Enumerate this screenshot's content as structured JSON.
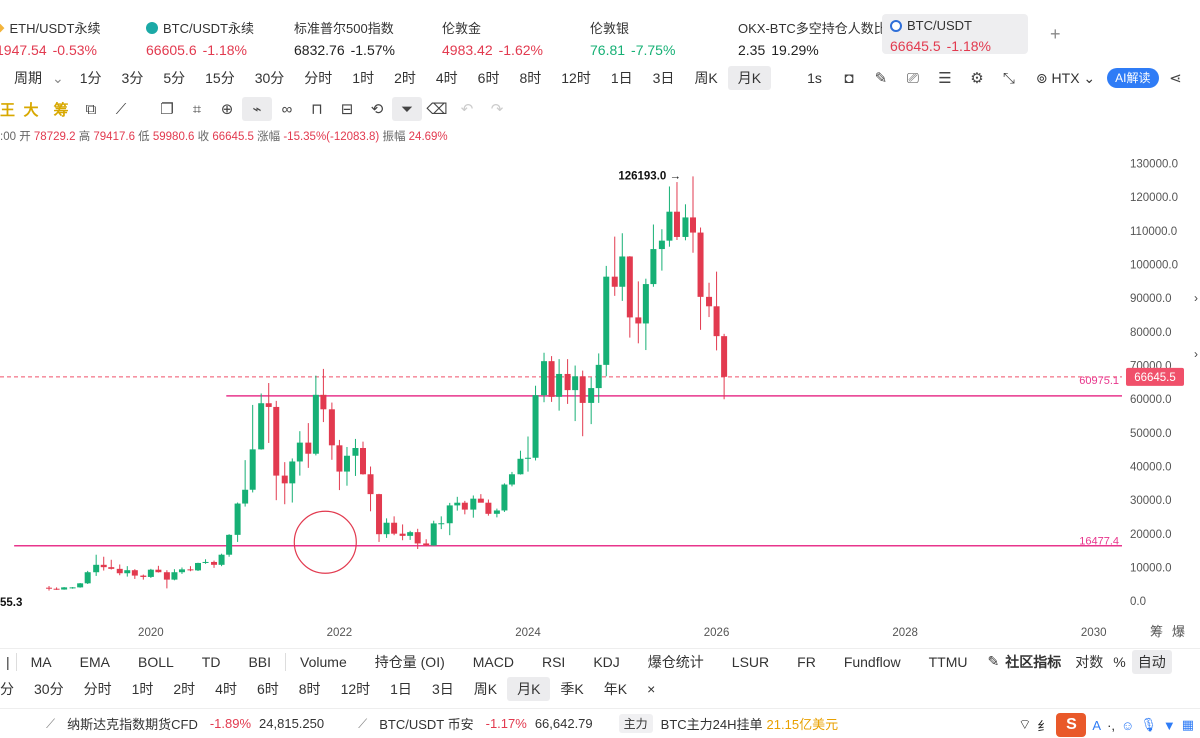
{
  "tickers": [
    {
      "name": "ETH/USDT永续",
      "price": "1947.54",
      "change": "-0.53%",
      "dir": "red",
      "icon": "eth-icon"
    },
    {
      "name": "BTC/USDT永续",
      "price": "66605.6",
      "change": "-1.18%",
      "dir": "red",
      "icon": "btc-perp-icon"
    },
    {
      "name": "标准普尔500指数",
      "price": "6832.76",
      "change": "-1.57%",
      "dir": "dark",
      "icon": ""
    },
    {
      "name": "伦敦金",
      "price": "4983.42",
      "change": "-1.62%",
      "dir": "red",
      "icon": ""
    },
    {
      "name": "伦敦银",
      "price": "76.81",
      "change": "-7.75%",
      "dir": "green",
      "icon": ""
    },
    {
      "name": "OKX-BTC多空持仓人数比",
      "price": "2.35",
      "change": "19.29%",
      "dir": "dark",
      "icon": ""
    },
    {
      "name": "BTC/USDT",
      "price": "66645.5",
      "change": "-1.18%",
      "dir": "red",
      "icon": "btc-icon",
      "active": true
    }
  ],
  "timeframes": [
    "周期",
    "1分",
    "3分",
    "5分",
    "15分",
    "30分",
    "分时",
    "1时",
    "2时",
    "4时",
    "6时",
    "8时",
    "12时",
    "1日",
    "3日",
    "周K",
    "月K"
  ],
  "timeframe_selected": "月K",
  "right_tools": {
    "interval": "1s",
    "exchange": "HTX",
    "ai": "AI解读"
  },
  "draw_tools_text": [
    "王",
    "大",
    "筹"
  ],
  "ohlc": {
    "time": ":00",
    "open_label": "开",
    "open": "78729.2",
    "high_label": "高",
    "high": "79417.6",
    "low_label": "低",
    "low": "59980.6",
    "close_label": "收",
    "close": "66645.5",
    "chg_label": "涨幅",
    "chg": "-15.35%(-12083.8)",
    "amp_label": "振幅",
    "amp": "24.69%"
  },
  "chart_data": {
    "type": "candlestick",
    "ylim": [
      -5000,
      137000
    ],
    "yticks": [
      0,
      10000,
      20000,
      30000,
      40000,
      50000,
      60000,
      70000,
      80000,
      90000,
      100000,
      110000,
      120000,
      130000
    ],
    "ytick_labels": [
      "0.0",
      "10000.0",
      "20000.0",
      "30000.0",
      "40000.0",
      "50000.0",
      "60000.0",
      "70000.0",
      "80000.0",
      "90000.0",
      "100000.0",
      "110000.0",
      "120000.0",
      "130000.0"
    ],
    "xticks": [
      "2020",
      "2022",
      "2024",
      "2026",
      "2028",
      "2030"
    ],
    "xtick_values": [
      2020.0,
      2022.0,
      2024.0,
      2026.0,
      2028.0,
      2030.0
    ],
    "xlim": [
      2018.4,
      2030.3
    ],
    "last_price": 66645.5,
    "last_price_label": "66645.5",
    "hlines": [
      {
        "value": 60975.1,
        "label": "60975.1"
      },
      {
        "value": 16477.4,
        "label": "16477.4"
      }
    ],
    "annotations": [
      {
        "text": "126193.0",
        "x": 2025.75,
        "y": 126193
      },
      {
        "text": "55.3",
        "x": 2019.0,
        "y": 3855.3
      }
    ],
    "circle": {
      "x": 2021.85,
      "y": 17500
    },
    "candles": [
      {
        "t": 2018.92,
        "o": 4000,
        "h": 4500,
        "l": 3150,
        "c": 3700
      },
      {
        "t": 2019.0,
        "o": 3700,
        "h": 4100,
        "l": 3350,
        "c": 3450
      },
      {
        "t": 2019.08,
        "o": 3450,
        "h": 4200,
        "l": 3400,
        "c": 4100
      },
      {
        "t": 2019.17,
        "o": 4100,
        "h": 4200,
        "l": 3700,
        "c": 4100
      },
      {
        "t": 2019.25,
        "o": 4100,
        "h": 5400,
        "l": 4000,
        "c": 5300
      },
      {
        "t": 2019.33,
        "o": 5300,
        "h": 9000,
        "l": 5100,
        "c": 8600
      },
      {
        "t": 2019.42,
        "o": 8600,
        "h": 13800,
        "l": 7500,
        "c": 10800
      },
      {
        "t": 2019.5,
        "o": 10800,
        "h": 13200,
        "l": 9100,
        "c": 10100
      },
      {
        "t": 2019.58,
        "o": 10100,
        "h": 12300,
        "l": 9400,
        "c": 9600
      },
      {
        "t": 2019.67,
        "o": 9600,
        "h": 10900,
        "l": 7700,
        "c": 8300
      },
      {
        "t": 2019.75,
        "o": 8300,
        "h": 10400,
        "l": 7300,
        "c": 9200
      },
      {
        "t": 2019.83,
        "o": 9200,
        "h": 9500,
        "l": 6600,
        "c": 7600
      },
      {
        "t": 2019.92,
        "o": 7600,
        "h": 7900,
        "l": 6400,
        "c": 7200
      },
      {
        "t": 2020.0,
        "o": 7200,
        "h": 9600,
        "l": 6900,
        "c": 9350
      },
      {
        "t": 2020.08,
        "o": 9350,
        "h": 10500,
        "l": 8500,
        "c": 8600
      },
      {
        "t": 2020.17,
        "o": 8600,
        "h": 9200,
        "l": 3800,
        "c": 6400
      },
      {
        "t": 2020.25,
        "o": 6400,
        "h": 9500,
        "l": 6200,
        "c": 8600
      },
      {
        "t": 2020.33,
        "o": 8600,
        "h": 10000,
        "l": 8100,
        "c": 9450
      },
      {
        "t": 2020.42,
        "o": 9450,
        "h": 10400,
        "l": 8900,
        "c": 9150
      },
      {
        "t": 2020.5,
        "o": 9150,
        "h": 11400,
        "l": 8950,
        "c": 11350
      },
      {
        "t": 2020.58,
        "o": 11350,
        "h": 12450,
        "l": 11100,
        "c": 11650
      },
      {
        "t": 2020.67,
        "o": 11650,
        "h": 12050,
        "l": 9900,
        "c": 10800
      },
      {
        "t": 2020.75,
        "o": 10800,
        "h": 14100,
        "l": 10400,
        "c": 13800
      },
      {
        "t": 2020.83,
        "o": 13800,
        "h": 19900,
        "l": 13200,
        "c": 19700
      },
      {
        "t": 2020.92,
        "o": 19700,
        "h": 29300,
        "l": 17600,
        "c": 29000
      },
      {
        "t": 2021.0,
        "o": 29000,
        "h": 41900,
        "l": 28100,
        "c": 33100
      },
      {
        "t": 2021.08,
        "o": 33100,
        "h": 58300,
        "l": 32300,
        "c": 45100
      },
      {
        "t": 2021.17,
        "o": 45100,
        "h": 61700,
        "l": 45000,
        "c": 58800
      },
      {
        "t": 2021.25,
        "o": 58800,
        "h": 64800,
        "l": 47000,
        "c": 57700
      },
      {
        "t": 2021.33,
        "o": 57700,
        "h": 59500,
        "l": 30000,
        "c": 37300
      },
      {
        "t": 2021.42,
        "o": 37300,
        "h": 41300,
        "l": 28800,
        "c": 35000
      },
      {
        "t": 2021.5,
        "o": 35000,
        "h": 42400,
        "l": 29300,
        "c": 41500
      },
      {
        "t": 2021.58,
        "o": 41500,
        "h": 50500,
        "l": 37300,
        "c": 47100
      },
      {
        "t": 2021.67,
        "o": 47100,
        "h": 52900,
        "l": 39600,
        "c": 43800
      },
      {
        "t": 2021.75,
        "o": 43800,
        "h": 67000,
        "l": 43300,
        "c": 61300
      },
      {
        "t": 2021.83,
        "o": 61300,
        "h": 69000,
        "l": 53200,
        "c": 57000
      },
      {
        "t": 2021.92,
        "o": 57000,
        "h": 59000,
        "l": 42000,
        "c": 46300
      },
      {
        "t": 2022.0,
        "o": 46300,
        "h": 47900,
        "l": 33000,
        "c": 38500
      },
      {
        "t": 2022.08,
        "o": 38500,
        "h": 45800,
        "l": 34300,
        "c": 43200
      },
      {
        "t": 2022.17,
        "o": 43200,
        "h": 48200,
        "l": 37200,
        "c": 45500
      },
      {
        "t": 2022.25,
        "o": 45500,
        "h": 47400,
        "l": 37600,
        "c": 37700
      },
      {
        "t": 2022.33,
        "o": 37700,
        "h": 40000,
        "l": 26700,
        "c": 31800
      },
      {
        "t": 2022.42,
        "o": 31800,
        "h": 31900,
        "l": 17600,
        "c": 19900
      },
      {
        "t": 2022.5,
        "o": 19900,
        "h": 24600,
        "l": 18800,
        "c": 23300
      },
      {
        "t": 2022.58,
        "o": 23300,
        "h": 25200,
        "l": 19600,
        "c": 20050
      },
      {
        "t": 2022.67,
        "o": 20050,
        "h": 22800,
        "l": 18100,
        "c": 19400
      },
      {
        "t": 2022.75,
        "o": 19400,
        "h": 20900,
        "l": 18200,
        "c": 20500
      },
      {
        "t": 2022.83,
        "o": 20500,
        "h": 21500,
        "l": 15500,
        "c": 17150
      },
      {
        "t": 2022.92,
        "o": 17150,
        "h": 18400,
        "l": 16300,
        "c": 16550
      },
      {
        "t": 2023.0,
        "o": 16550,
        "h": 23900,
        "l": 16500,
        "c": 23100
      },
      {
        "t": 2023.08,
        "o": 23100,
        "h": 25200,
        "l": 21400,
        "c": 23150
      },
      {
        "t": 2023.17,
        "o": 23150,
        "h": 29200,
        "l": 19600,
        "c": 28450
      },
      {
        "t": 2023.25,
        "o": 28450,
        "h": 31000,
        "l": 26900,
        "c": 29250
      },
      {
        "t": 2023.33,
        "o": 29250,
        "h": 29800,
        "l": 25800,
        "c": 27200
      },
      {
        "t": 2023.42,
        "o": 27200,
        "h": 31400,
        "l": 24800,
        "c": 30450
      },
      {
        "t": 2023.5,
        "o": 30450,
        "h": 31800,
        "l": 29500,
        "c": 29250
      },
      {
        "t": 2023.58,
        "o": 29250,
        "h": 30200,
        "l": 25400,
        "c": 25950
      },
      {
        "t": 2023.67,
        "o": 25950,
        "h": 27500,
        "l": 24900,
        "c": 26950
      },
      {
        "t": 2023.75,
        "o": 26950,
        "h": 35000,
        "l": 26500,
        "c": 34650
      },
      {
        "t": 2023.83,
        "o": 34650,
        "h": 38400,
        "l": 34100,
        "c": 37700
      },
      {
        "t": 2023.92,
        "o": 37700,
        "h": 44700,
        "l": 37600,
        "c": 42300
      },
      {
        "t": 2024.0,
        "o": 42300,
        "h": 48900,
        "l": 38500,
        "c": 42600
      },
      {
        "t": 2024.08,
        "o": 42600,
        "h": 64000,
        "l": 41800,
        "c": 61200
      },
      {
        "t": 2024.17,
        "o": 61200,
        "h": 73800,
        "l": 59100,
        "c": 71300
      },
      {
        "t": 2024.25,
        "o": 71300,
        "h": 72800,
        "l": 59200,
        "c": 60700
      },
      {
        "t": 2024.33,
        "o": 60700,
        "h": 71900,
        "l": 56600,
        "c": 67500
      },
      {
        "t": 2024.42,
        "o": 67500,
        "h": 71900,
        "l": 58600,
        "c": 62700
      },
      {
        "t": 2024.5,
        "o": 62700,
        "h": 70000,
        "l": 53500,
        "c": 66800
      },
      {
        "t": 2024.58,
        "o": 66800,
        "h": 68500,
        "l": 49000,
        "c": 58900
      },
      {
        "t": 2024.67,
        "o": 58900,
        "h": 66500,
        "l": 52600,
        "c": 63300
      },
      {
        "t": 2024.75,
        "o": 63300,
        "h": 73600,
        "l": 58900,
        "c": 70200
      },
      {
        "t": 2024.83,
        "o": 70200,
        "h": 99600,
        "l": 66800,
        "c": 96400
      },
      {
        "t": 2024.92,
        "o": 96400,
        "h": 108300,
        "l": 90700,
        "c": 93400
      },
      {
        "t": 2025.0,
        "o": 93400,
        "h": 109300,
        "l": 89200,
        "c": 102400
      },
      {
        "t": 2025.08,
        "o": 102400,
        "h": 102500,
        "l": 78300,
        "c": 84300
      },
      {
        "t": 2025.17,
        "o": 84300,
        "h": 95000,
        "l": 76600,
        "c": 82500
      },
      {
        "t": 2025.25,
        "o": 82500,
        "h": 95800,
        "l": 74600,
        "c": 94200
      },
      {
        "t": 2025.33,
        "o": 94200,
        "h": 111900,
        "l": 93400,
        "c": 104600
      },
      {
        "t": 2025.42,
        "o": 104600,
        "h": 110500,
        "l": 98200,
        "c": 107100
      },
      {
        "t": 2025.5,
        "o": 107100,
        "h": 123200,
        "l": 105300,
        "c": 115700
      },
      {
        "t": 2025.58,
        "o": 115700,
        "h": 124500,
        "l": 107300,
        "c": 108200
      },
      {
        "t": 2025.67,
        "o": 108200,
        "h": 117900,
        "l": 107200,
        "c": 114000
      },
      {
        "t": 2025.75,
        "o": 114000,
        "h": 126193,
        "l": 103500,
        "c": 109500
      },
      {
        "t": 2025.83,
        "o": 109500,
        "h": 111000,
        "l": 80600,
        "c": 90400
      },
      {
        "t": 2025.92,
        "o": 90400,
        "h": 94600,
        "l": 84400,
        "c": 87600
      },
      {
        "t": 2026.0,
        "o": 87600,
        "h": 97900,
        "l": 74500,
        "c": 78729.2
      },
      {
        "t": 2026.08,
        "o": 78729.2,
        "h": 79417.6,
        "l": 59980.6,
        "c": 66645.5
      }
    ]
  },
  "indicators": [
    "MA",
    "EMA",
    "BOLL",
    "TD",
    "BBI",
    "Volume",
    "持仓量 (OI)",
    "MACD",
    "RSI",
    "KDJ",
    "爆仓统计",
    "LSUR",
    "FR",
    "Fundflow",
    "TTMU"
  ],
  "indicator_right": {
    "community": "社区指标",
    "log": "对数",
    "pct": "%",
    "auto": "自动"
  },
  "bottom_timeframes": [
    "分",
    "30分",
    "分时",
    "1时",
    "2时",
    "4时",
    "6时",
    "8时",
    "12时",
    "1日",
    "3日",
    "周K",
    "月K",
    "季K",
    "年K"
  ],
  "bottom_selected": "月K",
  "footer": {
    "item1_name": "纳斯达克指数期货CFD",
    "item1_change": "-1.89%",
    "item1_price": "24,815.250",
    "item2_name": "BTC/USDT 币安",
    "item2_change": "-1.17%",
    "item2_price": "66,642.79",
    "badge": "主力",
    "item3_text": "BTC主力24H挂单",
    "item3_value": "21.15亿美元",
    "tray_text": "纟"
  },
  "colors": {
    "up": "#16b075",
    "down": "#e23a4f",
    "hline": "#e8358c",
    "last": "#f0506a"
  }
}
